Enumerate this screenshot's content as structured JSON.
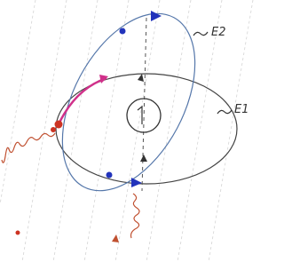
{
  "labels": {
    "e2": "E2",
    "e1": "E1"
  }
}
